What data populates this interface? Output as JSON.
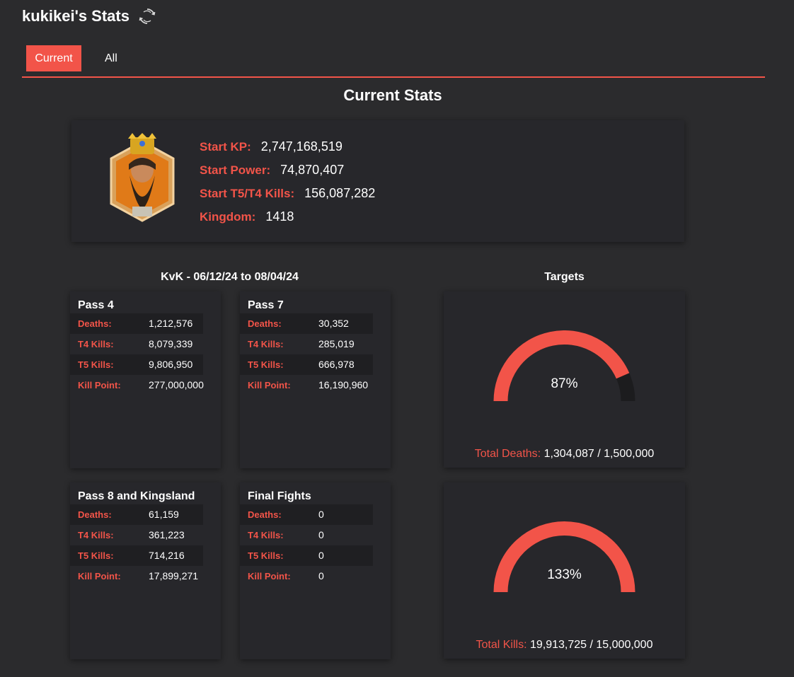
{
  "header": {
    "title": "kukikei's Stats",
    "refresh_icon": "refresh-icon"
  },
  "tabs": [
    {
      "label": "Current",
      "active": true
    },
    {
      "label": "All",
      "active": false
    }
  ],
  "section_title": "Current Stats",
  "profile": {
    "avatar_icon": "governor-avatar-icon",
    "stats": [
      {
        "label": "Start KP:",
        "value": "2,747,168,519"
      },
      {
        "label": "Start Power:",
        "value": "74,870,407"
      },
      {
        "label": "Start T5/T4 Kills:",
        "value": "156,087,282"
      },
      {
        "label": "Kingdom:",
        "value": "1418"
      }
    ]
  },
  "kvk": {
    "header": "KvK - 06/12/24 to 08/04/24",
    "passes": [
      {
        "name": "Pass 4",
        "rows": [
          {
            "label": "Deaths:",
            "value": "1,212,576"
          },
          {
            "label": "T4 Kills:",
            "value": "8,079,339"
          },
          {
            "label": "T5 Kills:",
            "value": "9,806,950"
          },
          {
            "label": "Kill Point:",
            "value": "277,000,000"
          }
        ]
      },
      {
        "name": "Pass 7",
        "rows": [
          {
            "label": "Deaths:",
            "value": "30,352"
          },
          {
            "label": "T4 Kills:",
            "value": "285,019"
          },
          {
            "label": "T5 Kills:",
            "value": "666,978"
          },
          {
            "label": "Kill Point:",
            "value": "16,190,960"
          }
        ]
      },
      {
        "name": "Pass 8 and Kingsland",
        "rows": [
          {
            "label": "Deaths:",
            "value": "61,159"
          },
          {
            "label": "T4 Kills:",
            "value": "361,223"
          },
          {
            "label": "T5 Kills:",
            "value": "714,216"
          },
          {
            "label": "Kill Point:",
            "value": "17,899,271"
          }
        ]
      },
      {
        "name": "Final Fights",
        "rows": [
          {
            "label": "Deaths:",
            "value": "0"
          },
          {
            "label": "T4 Kills:",
            "value": "0"
          },
          {
            "label": "T5 Kills:",
            "value": "0"
          },
          {
            "label": "Kill Point:",
            "value": "0"
          }
        ]
      }
    ]
  },
  "targets": {
    "header": "Targets",
    "items": [
      {
        "percent_label": "87%",
        "fraction": 0.87,
        "total_label": "Total Deaths:",
        "total_value": "1,304,087 / 1,500,000"
      },
      {
        "percent_label": "133%",
        "fraction": 1.0,
        "total_label": "Total Kills:",
        "total_value": "19,913,725 / 15,000,000"
      }
    ]
  },
  "colors": {
    "accent": "#f25449",
    "background": "#2b2b2d",
    "card": "#27272b",
    "gauge_track": "#1c1c1e"
  }
}
